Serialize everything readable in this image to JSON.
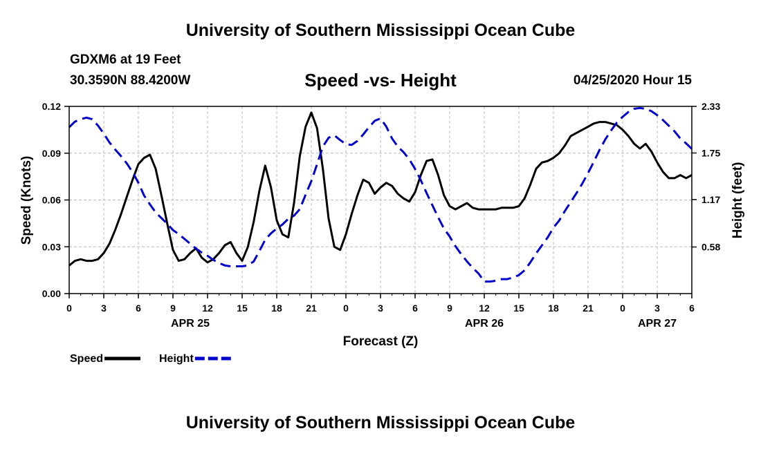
{
  "header": {
    "title": "University of Southern Mississippi Ocean Cube",
    "station": "GDXM6 at 19 Feet",
    "coords": "30.3590N 88.4200W",
    "datestamp": "04/25/2020 Hour 15"
  },
  "footer": {
    "title": "University of Southern Mississippi Ocean Cube"
  },
  "chart_data": {
    "type": "line",
    "title": "Speed -vs- Height",
    "xlabel": "Forecast (Z)",
    "ylabel_left": "Speed (Knots)",
    "ylabel_right": "Height (feet)",
    "xlim": [
      0,
      54
    ],
    "ylim_left": [
      0,
      0.12
    ],
    "ylim_right": [
      0,
      2.33
    ],
    "yticks_left": [
      "0.00",
      "0.03",
      "0.06",
      "0.09",
      "0.12"
    ],
    "yticks_left_values": [
      0,
      0.03,
      0.06,
      0.09,
      0.12
    ],
    "yticks_right": [
      "0.58",
      "1.17",
      "1.75",
      "2.33"
    ],
    "yticks_right_values": [
      0.58,
      1.17,
      1.75,
      2.33
    ],
    "xticks": [
      "0",
      "3",
      "6",
      "9",
      "12",
      "15",
      "18",
      "21",
      "0",
      "3",
      "6",
      "9",
      "12",
      "15",
      "18",
      "21",
      "0",
      "3",
      "6"
    ],
    "date_labels": [
      {
        "text": "APR 25",
        "x": 10.5
      },
      {
        "text": "APR 26",
        "x": 36
      },
      {
        "text": "APR 27",
        "x": 51
      }
    ],
    "grid": true,
    "legend": [
      {
        "name": "Speed",
        "color": "#000000",
        "style": "solid"
      },
      {
        "name": "Height",
        "color": "#0000cc",
        "style": "dashed"
      }
    ],
    "series": [
      {
        "name": "Speed",
        "axis": "left",
        "color": "#000000",
        "x": [
          0,
          0.5,
          1,
          1.5,
          2,
          2.5,
          3,
          3.5,
          4,
          4.5,
          5,
          5.5,
          6,
          6.5,
          7,
          7.5,
          8,
          8.5,
          9,
          9.5,
          10,
          10.5,
          11,
          11.5,
          12,
          12.5,
          13,
          13.5,
          14,
          14.5,
          15,
          15.5,
          16,
          16.5,
          17,
          17.5,
          18,
          18.5,
          19,
          19.5,
          20,
          20.5,
          21,
          21.5,
          22,
          22.5,
          23,
          23.5,
          24,
          24.5,
          25,
          25.5,
          26,
          26.5,
          27,
          27.5,
          28,
          28.5,
          29,
          29.5,
          30,
          30.5,
          31,
          31.5,
          32,
          32.5,
          33,
          33.5,
          34,
          34.5,
          35,
          35.5,
          36,
          36.5,
          37,
          37.5,
          38,
          38.5,
          39,
          39.5,
          40,
          40.5,
          41,
          41.5,
          42,
          42.5,
          43,
          43.5,
          44,
          44.5,
          45,
          45.5,
          46,
          46.5,
          47,
          47.5,
          48,
          48.5,
          49,
          49.5,
          50,
          50.5,
          51,
          51.5,
          52,
          52.5,
          53,
          53.5,
          54
        ],
        "values": [
          0.018,
          0.021,
          0.022,
          0.021,
          0.021,
          0.022,
          0.026,
          0.032,
          0.041,
          0.051,
          0.062,
          0.073,
          0.083,
          0.087,
          0.089,
          0.08,
          0.063,
          0.045,
          0.028,
          0.021,
          0.022,
          0.026,
          0.029,
          0.023,
          0.02,
          0.022,
          0.026,
          0.031,
          0.033,
          0.026,
          0.021,
          0.03,
          0.046,
          0.066,
          0.082,
          0.068,
          0.047,
          0.038,
          0.036,
          0.058,
          0.088,
          0.107,
          0.116,
          0.106,
          0.08,
          0.048,
          0.03,
          0.028,
          0.038,
          0.051,
          0.063,
          0.073,
          0.071,
          0.064,
          0.068,
          0.071,
          0.069,
          0.064,
          0.061,
          0.059,
          0.065,
          0.076,
          0.085,
          0.086,
          0.076,
          0.063,
          0.056,
          0.054,
          0.056,
          0.058,
          0.055,
          0.054,
          0.054,
          0.054,
          0.054,
          0.055,
          0.055,
          0.055,
          0.056,
          0.061,
          0.07,
          0.08,
          0.084,
          0.085,
          0.087,
          0.09,
          0.095,
          0.101,
          0.103,
          0.105,
          0.107,
          0.109,
          0.11,
          0.11,
          0.109,
          0.108,
          0.105,
          0.101,
          0.096,
          0.093,
          0.096,
          0.091,
          0.084,
          0.078,
          0.074,
          0.074,
          0.076,
          0.074,
          0.076
        ]
      },
      {
        "name": "Height",
        "axis": "right",
        "color": "#0000cc",
        "x": [
          0,
          0.5,
          1,
          1.5,
          2,
          2.5,
          3,
          3.5,
          4,
          4.5,
          5,
          5.5,
          6,
          6.5,
          7,
          7.5,
          8,
          8.5,
          9,
          9.5,
          10,
          10.5,
          11,
          11.5,
          12,
          12.5,
          13,
          13.5,
          14,
          14.5,
          15,
          15.5,
          16,
          16.5,
          17,
          17.5,
          18,
          18.5,
          19,
          19.5,
          20,
          20.5,
          21,
          21.5,
          22,
          22.5,
          23,
          23.5,
          24,
          24.5,
          25,
          25.5,
          26,
          26.5,
          27,
          27.5,
          28,
          28.5,
          29,
          29.5,
          30,
          30.5,
          31,
          31.5,
          32,
          32.5,
          33,
          33.5,
          34,
          34.5,
          35,
          35.5,
          36,
          36.5,
          37,
          37.5,
          38,
          38.5,
          39,
          39.5,
          40,
          40.5,
          41,
          41.5,
          42,
          42.5,
          43,
          43.5,
          44,
          44.5,
          45,
          45.5,
          46,
          46.5,
          47,
          47.5,
          48,
          48.5,
          49,
          49.5,
          50,
          50.5,
          51,
          51.5,
          52,
          52.5,
          53,
          53.5,
          54
        ],
        "values": [
          2.07,
          2.14,
          2.17,
          2.19,
          2.17,
          2.09,
          1.99,
          1.88,
          1.79,
          1.71,
          1.62,
          1.51,
          1.38,
          1.22,
          1.11,
          1.01,
          0.94,
          0.87,
          0.79,
          0.74,
          0.68,
          0.62,
          0.56,
          0.51,
          0.47,
          0.42,
          0.38,
          0.35,
          0.34,
          0.34,
          0.34,
          0.35,
          0.4,
          0.53,
          0.67,
          0.75,
          0.81,
          0.86,
          0.93,
          0.97,
          1.05,
          1.23,
          1.4,
          1.61,
          1.83,
          1.94,
          1.97,
          1.91,
          1.86,
          1.85,
          1.9,
          1.98,
          2.07,
          2.15,
          2.18,
          2.08,
          1.93,
          1.83,
          1.76,
          1.67,
          1.55,
          1.41,
          1.25,
          1.1,
          0.95,
          0.81,
          0.71,
          0.59,
          0.49,
          0.4,
          0.32,
          0.25,
          0.15,
          0.15,
          0.16,
          0.18,
          0.18,
          0.2,
          0.23,
          0.29,
          0.39,
          0.5,
          0.6,
          0.7,
          0.82,
          0.91,
          1.03,
          1.14,
          1.25,
          1.37,
          1.5,
          1.64,
          1.79,
          1.92,
          2.03,
          2.13,
          2.2,
          2.26,
          2.3,
          2.31,
          2.3,
          2.27,
          2.22,
          2.16,
          2.09,
          2.02,
          1.93,
          1.87,
          1.8
        ]
      }
    ]
  }
}
